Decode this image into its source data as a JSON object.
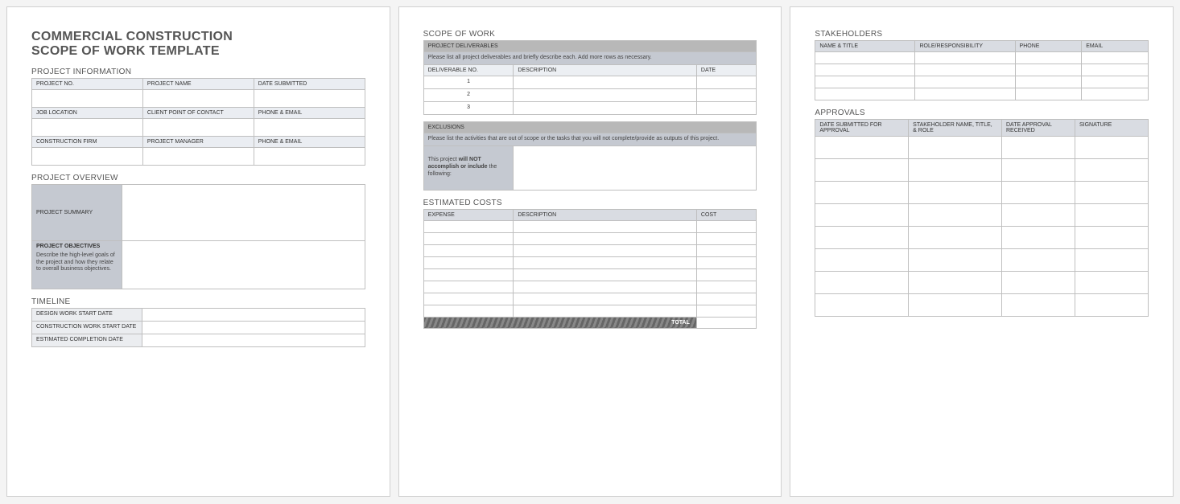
{
  "colors": {
    "page_bg": "#ffffff",
    "outer_bg": "#f4f4f4",
    "border": "#bfbfbf",
    "header_blue_light": "#eaedf2",
    "header_blue_mid": "#d9dce2",
    "header_gray": "#c5c9d1",
    "header_dark_gray": "#b8b8b8",
    "label_col": "#ebedf0",
    "title_color": "#555555"
  },
  "title_line1": "COMMERCIAL CONSTRUCTION",
  "title_line2": "SCOPE OF WORK TEMPLATE",
  "project_info": {
    "heading": "PROJECT INFORMATION",
    "row1": [
      "PROJECT NO.",
      "PROJECT NAME",
      "DATE SUBMITTED"
    ],
    "row2": [
      "JOB LOCATION",
      "CLIENT POINT OF CONTACT",
      "PHONE & EMAIL"
    ],
    "row3": [
      "CONSTRUCTION FIRM",
      "PROJECT MANAGER",
      "PHONE & EMAIL"
    ]
  },
  "overview": {
    "heading": "PROJECT OVERVIEW",
    "summary_label": "PROJECT SUMMARY",
    "objectives_label": "PROJECT OBJECTIVES",
    "objectives_note": "Describe the high-level goals of the project and how they relate to overall business objectives."
  },
  "timeline": {
    "heading": "TIMELINE",
    "rows": [
      "DESIGN WORK START DATE",
      "CONSTRUCTION WORK START DATE",
      "ESTIMATED COMPLETION DATE"
    ]
  },
  "scope": {
    "heading": "SCOPE OF WORK",
    "deliverables_header": "PROJECT DELIVERABLES",
    "deliverables_note": "Please list all project deliverables and briefly describe each. Add more rows as necessary.",
    "deliverables_cols": [
      "DELIVERABLE NO.",
      "DESCRIPTION",
      "DATE"
    ],
    "deliverables_rows": [
      "1",
      "2",
      "3"
    ],
    "exclusions_header": "EXCLUSIONS",
    "exclusions_note": "Please list the activities that are out of scope or the tasks that you will not complete/provide as outputs of this project.",
    "exclusions_label_a": "This project ",
    "exclusions_label_b": "will NOT accomplish or include",
    "exclusions_label_c": " the following:"
  },
  "costs": {
    "heading": "ESTIMATED COSTS",
    "cols": [
      "EXPENSE",
      "DESCRIPTION",
      "COST"
    ],
    "blank_rows": 8,
    "total_label": "TOTAL"
  },
  "stakeholders": {
    "heading": "STAKEHOLDERS",
    "cols": [
      "NAME & TITLE",
      "ROLE/RESPONSIBILITY",
      "PHONE",
      "EMAIL"
    ],
    "blank_rows": 4
  },
  "approvals": {
    "heading": "APPROVALS",
    "cols": [
      "DATE SUBMITTED FOR APPROVAL",
      "STAKEHOLDER NAME, TITLE, & ROLE",
      "DATE APPROVAL RECEIVED",
      "SIGNATURE"
    ],
    "blank_rows": 8
  }
}
